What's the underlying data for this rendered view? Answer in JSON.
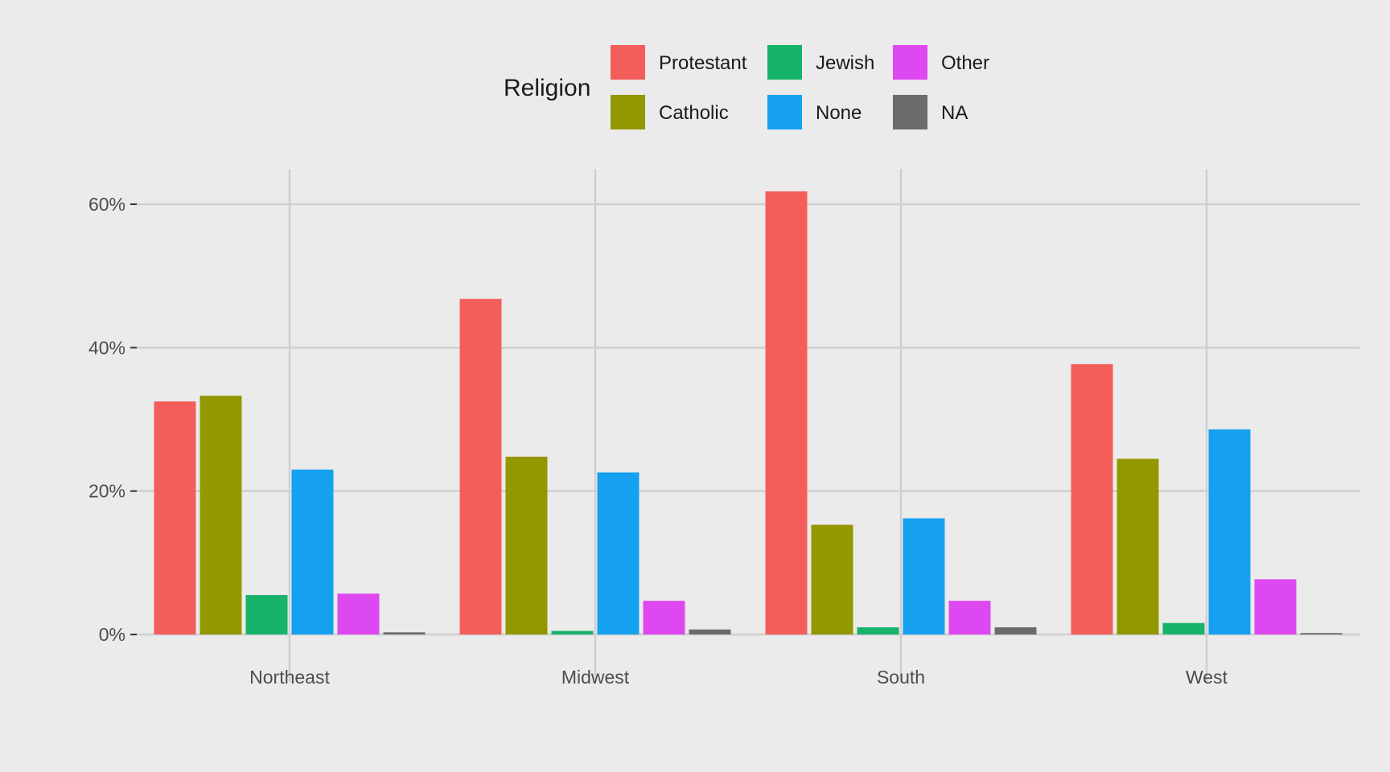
{
  "chart_data": {
    "type": "bar",
    "title": "",
    "xlabel": "",
    "ylabel": "",
    "categories": [
      "Northeast",
      "Midwest",
      "South",
      "West"
    ],
    "ylim": [
      0,
      0.65
    ],
    "y_ticks": [
      0,
      0.2,
      0.4,
      0.6
    ],
    "y_tick_labels": [
      "0%",
      "20%",
      "40%",
      "60%"
    ],
    "grid": true,
    "legend": {
      "title": "Religion",
      "position": "top"
    },
    "series": [
      {
        "name": "Protestant",
        "color": "#F35E5A",
        "values": [
          0.325,
          0.468,
          0.618,
          0.377
        ]
      },
      {
        "name": "Catholic",
        "color": "#939700",
        "values": [
          0.333,
          0.248,
          0.153,
          0.245
        ]
      },
      {
        "name": "Jewish",
        "color": "#17B36B",
        "values": [
          0.055,
          0.005,
          0.01,
          0.016
        ]
      },
      {
        "name": "None",
        "color": "#15A0F0",
        "values": [
          0.23,
          0.226,
          0.162,
          0.286
        ]
      },
      {
        "name": "Other",
        "color": "#DE48F1",
        "values": [
          0.057,
          0.047,
          0.047,
          0.077
        ]
      },
      {
        "name": "NA",
        "color": "#6B6B6B",
        "values": [
          0.003,
          0.007,
          0.01,
          0.002
        ]
      }
    ]
  }
}
